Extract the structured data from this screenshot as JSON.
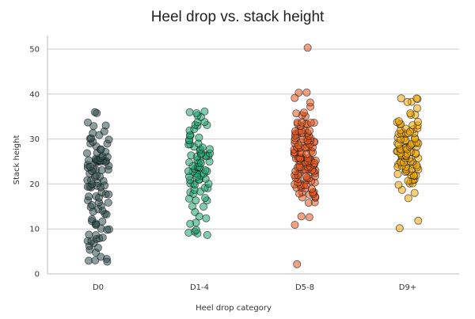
{
  "chart_data": {
    "type": "scatter",
    "title": "Heel drop vs. stack height",
    "xlabel": "Heel drop category",
    "ylabel": "Stack height",
    "categories": [
      "D0",
      "D1-4",
      "D5-8",
      "D9+"
    ],
    "ylim": [
      0,
      53
    ],
    "yticks": [
      0,
      10,
      20,
      30,
      40,
      50
    ],
    "grid": "horizontal",
    "legend": "none",
    "series": [
      {
        "category": "D0",
        "color": "#2f4f4f",
        "values": [
          3,
          3,
          3,
          3,
          4,
          5,
          5,
          6,
          6,
          7,
          7,
          7,
          8,
          8,
          8,
          9,
          9,
          10,
          10,
          10,
          11,
          11,
          11,
          12,
          12,
          12,
          13,
          13,
          14,
          14,
          14,
          15,
          15,
          15,
          16,
          16,
          16,
          17,
          17,
          17,
          18,
          18,
          18,
          19,
          19,
          19,
          19,
          20,
          20,
          20,
          20,
          21,
          21,
          21,
          22,
          22,
          22,
          22,
          23,
          23,
          23,
          23,
          23,
          24,
          24,
          24,
          24,
          25,
          25,
          25,
          25,
          25,
          25,
          25,
          25,
          25,
          25,
          25,
          25,
          26,
          26,
          26,
          26,
          27,
          27,
          27,
          28,
          28,
          28,
          29,
          29,
          29,
          30,
          30,
          30,
          31,
          31,
          32,
          33,
          33,
          34,
          36,
          36
        ]
      },
      {
        "category": "D1-4",
        "color": "#1aa36f",
        "values": [
          9,
          9,
          9,
          9,
          10,
          11,
          11,
          12,
          13,
          14,
          15,
          15,
          16,
          16,
          17,
          17,
          18,
          18,
          18,
          19,
          19,
          19,
          20,
          20,
          20,
          20,
          21,
          21,
          21,
          21,
          22,
          22,
          22,
          22,
          22,
          22,
          23,
          23,
          23,
          23,
          23,
          24,
          24,
          24,
          24,
          24,
          25,
          25,
          25,
          25,
          25,
          25,
          26,
          26,
          26,
          26,
          26,
          27,
          27,
          27,
          27,
          28,
          28,
          28,
          28,
          29,
          29,
          29,
          30,
          30,
          30,
          31,
          31,
          32,
          32,
          33,
          33,
          33,
          34,
          34,
          35,
          35,
          36,
          36,
          36
        ]
      },
      {
        "category": "D5-8",
        "color": "#e8561b",
        "values": [
          2,
          11,
          13,
          13,
          16,
          16,
          17,
          17,
          17,
          18,
          18,
          18,
          18,
          18,
          18,
          19,
          19,
          19,
          19,
          20,
          20,
          20,
          20,
          20,
          20,
          20,
          21,
          21,
          21,
          21,
          21,
          21,
          22,
          22,
          22,
          22,
          22,
          22,
          22,
          23,
          23,
          23,
          23,
          23,
          23,
          23,
          23,
          24,
          24,
          24,
          24,
          24,
          24,
          24,
          24,
          25,
          25,
          25,
          25,
          25,
          25,
          25,
          25,
          25,
          25,
          26,
          26,
          26,
          26,
          26,
          26,
          26,
          26,
          27,
          27,
          27,
          27,
          27,
          27,
          27,
          27,
          28,
          28,
          28,
          28,
          28,
          28,
          28,
          28,
          29,
          29,
          29,
          29,
          29,
          29,
          29,
          30,
          30,
          30,
          30,
          30,
          30,
          30,
          31,
          31,
          31,
          31,
          31,
          31,
          32,
          32,
          32,
          32,
          32,
          33,
          33,
          33,
          33,
          34,
          34,
          34,
          34,
          35,
          35,
          36,
          36,
          37,
          38,
          39,
          40,
          40,
          50
        ]
      },
      {
        "category": "D9+",
        "color": "#f0a500",
        "values": [
          10,
          12,
          17,
          18,
          19,
          20,
          20,
          20,
          21,
          21,
          21,
          21,
          22,
          22,
          22,
          22,
          22,
          23,
          23,
          23,
          23,
          23,
          23,
          24,
          24,
          24,
          24,
          24,
          24,
          24,
          25,
          25,
          25,
          25,
          25,
          25,
          25,
          26,
          26,
          26,
          26,
          26,
          26,
          26,
          27,
          27,
          27,
          27,
          27,
          27,
          27,
          27,
          28,
          28,
          28,
          28,
          28,
          28,
          28,
          28,
          29,
          29,
          29,
          29,
          29,
          29,
          29,
          30,
          30,
          30,
          30,
          30,
          30,
          30,
          31,
          31,
          31,
          31,
          31,
          31,
          32,
          32,
          32,
          32,
          32,
          33,
          33,
          33,
          33,
          34,
          34,
          34,
          35,
          35,
          36,
          37,
          38,
          38,
          39,
          39,
          39
        ]
      }
    ]
  }
}
